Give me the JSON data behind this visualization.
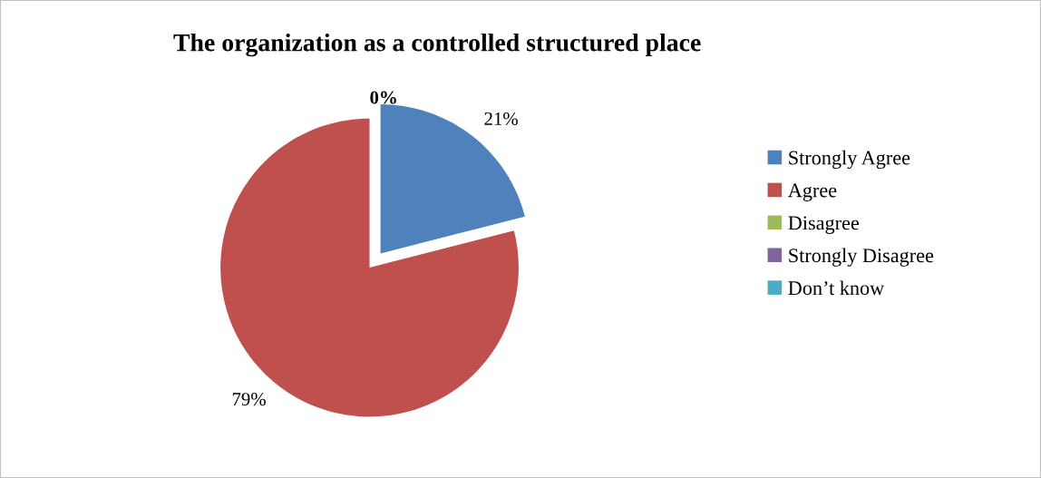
{
  "chart_data": {
    "type": "pie",
    "title": "The organization as a controlled structured place",
    "categories": [
      "Strongly Agree",
      "Agree",
      "Disagree",
      "Strongly Disagree",
      "Don’t know"
    ],
    "values": [
      21,
      79,
      0,
      0,
      0
    ],
    "colors": [
      "#4f81bd",
      "#c0504d",
      "#9bbb59",
      "#8064a2",
      "#4bacc6"
    ],
    "value_labels": [
      "21%",
      "79%",
      "0%",
      null,
      null
    ],
    "legend": "right"
  }
}
